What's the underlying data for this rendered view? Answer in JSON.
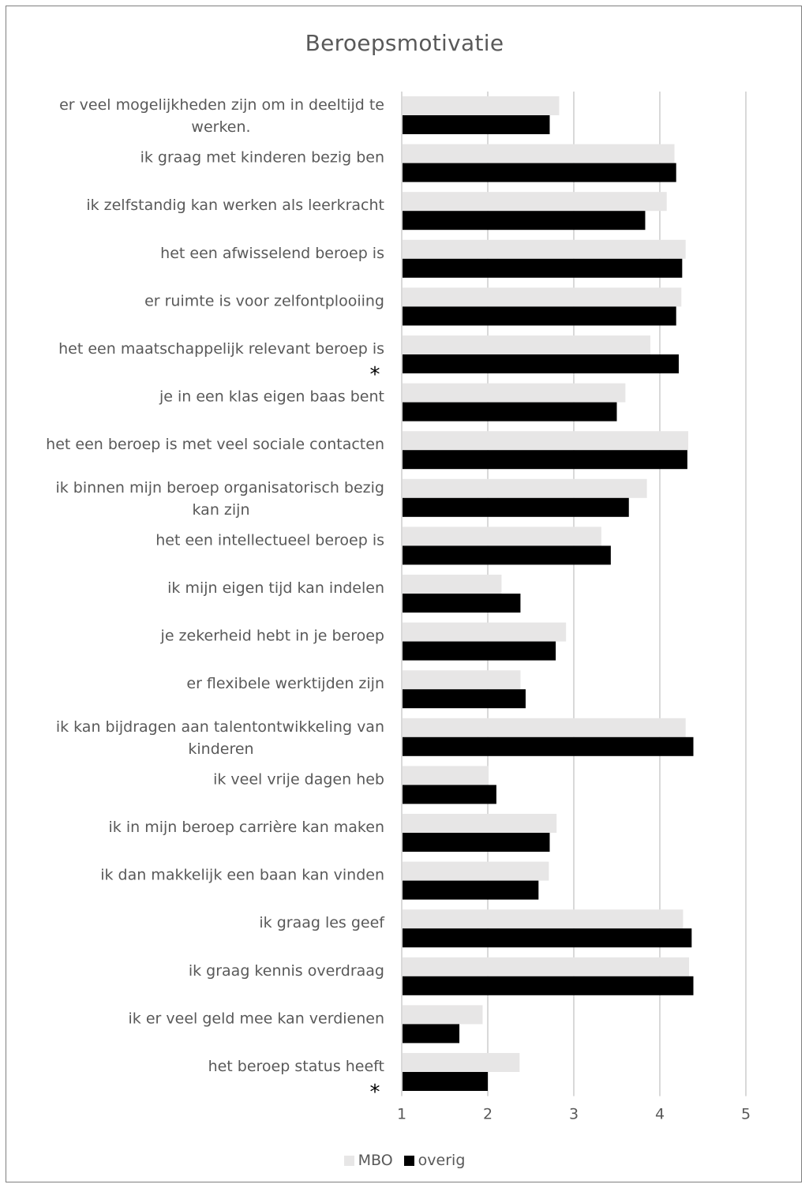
{
  "chart_data": {
    "type": "bar",
    "orientation": "horizontal",
    "title": "Beroepsmotivatie",
    "xlabel": "",
    "ylabel": "",
    "xlim": [
      1,
      5
    ],
    "xticks": [
      "1",
      "2",
      "3",
      "4",
      "5"
    ],
    "grid": true,
    "legend_position": "bottom",
    "categories": [
      {
        "label": [
          "er veel mogelijkheden zijn om in deeltijd te",
          "werken."
        ],
        "mark": ""
      },
      {
        "label": [
          "ik graag met kinderen bezig ben"
        ],
        "mark": ""
      },
      {
        "label": [
          "ik zelfstandig kan werken als leerkracht"
        ],
        "mark": ""
      },
      {
        "label": [
          "het een afwisselend beroep is"
        ],
        "mark": ""
      },
      {
        "label": [
          "er ruimte is voor zelfontplooiing"
        ],
        "mark": ""
      },
      {
        "label": [
          "het een maatschappelijk relevant beroep is"
        ],
        "mark": "*"
      },
      {
        "label": [
          "je in een klas eigen baas bent"
        ],
        "mark": ""
      },
      {
        "label": [
          "het een beroep is met veel sociale contacten"
        ],
        "mark": ""
      },
      {
        "label": [
          "ik binnen mijn beroep organisatorisch bezig",
          "kan zijn"
        ],
        "mark": ""
      },
      {
        "label": [
          "het een intellectueel beroep is"
        ],
        "mark": ""
      },
      {
        "label": [
          "ik mijn eigen tijd kan indelen"
        ],
        "mark": ""
      },
      {
        "label": [
          "je zekerheid hebt in je beroep"
        ],
        "mark": ""
      },
      {
        "label": [
          "er flexibele werktijden zijn"
        ],
        "mark": ""
      },
      {
        "label": [
          "ik kan bijdragen aan talentontwikkeling van",
          "kinderen"
        ],
        "mark": ""
      },
      {
        "label": [
          "ik veel vrije dagen heb"
        ],
        "mark": ""
      },
      {
        "label": [
          "ik in mijn beroep carrière kan maken"
        ],
        "mark": ""
      },
      {
        "label": [
          "ik dan makkelijk een baan kan vinden"
        ],
        "mark": ""
      },
      {
        "label": [
          "ik graag les geef"
        ],
        "mark": ""
      },
      {
        "label": [
          "ik graag kennis overdraag"
        ],
        "mark": ""
      },
      {
        "label": [
          "ik er veel geld mee kan verdienen"
        ],
        "mark": ""
      },
      {
        "label": [
          "het beroep status heeft"
        ],
        "mark": "*"
      }
    ],
    "series": [
      {
        "name": "MBO",
        "color": "#e7e6e6",
        "values": [
          2.83,
          4.17,
          4.08,
          4.3,
          4.25,
          3.89,
          3.6,
          4.33,
          3.85,
          3.32,
          2.16,
          2.91,
          2.38,
          4.3,
          2.01,
          2.8,
          2.71,
          4.27,
          4.34,
          1.94,
          2.37
        ]
      },
      {
        "name": "overig",
        "color": "#000000",
        "values": [
          2.72,
          4.19,
          3.83,
          4.26,
          4.19,
          4.22,
          3.5,
          4.32,
          3.64,
          3.43,
          2.38,
          2.79,
          2.44,
          4.39,
          2.1,
          2.72,
          2.59,
          4.37,
          4.39,
          1.67,
          2.0
        ]
      }
    ]
  }
}
